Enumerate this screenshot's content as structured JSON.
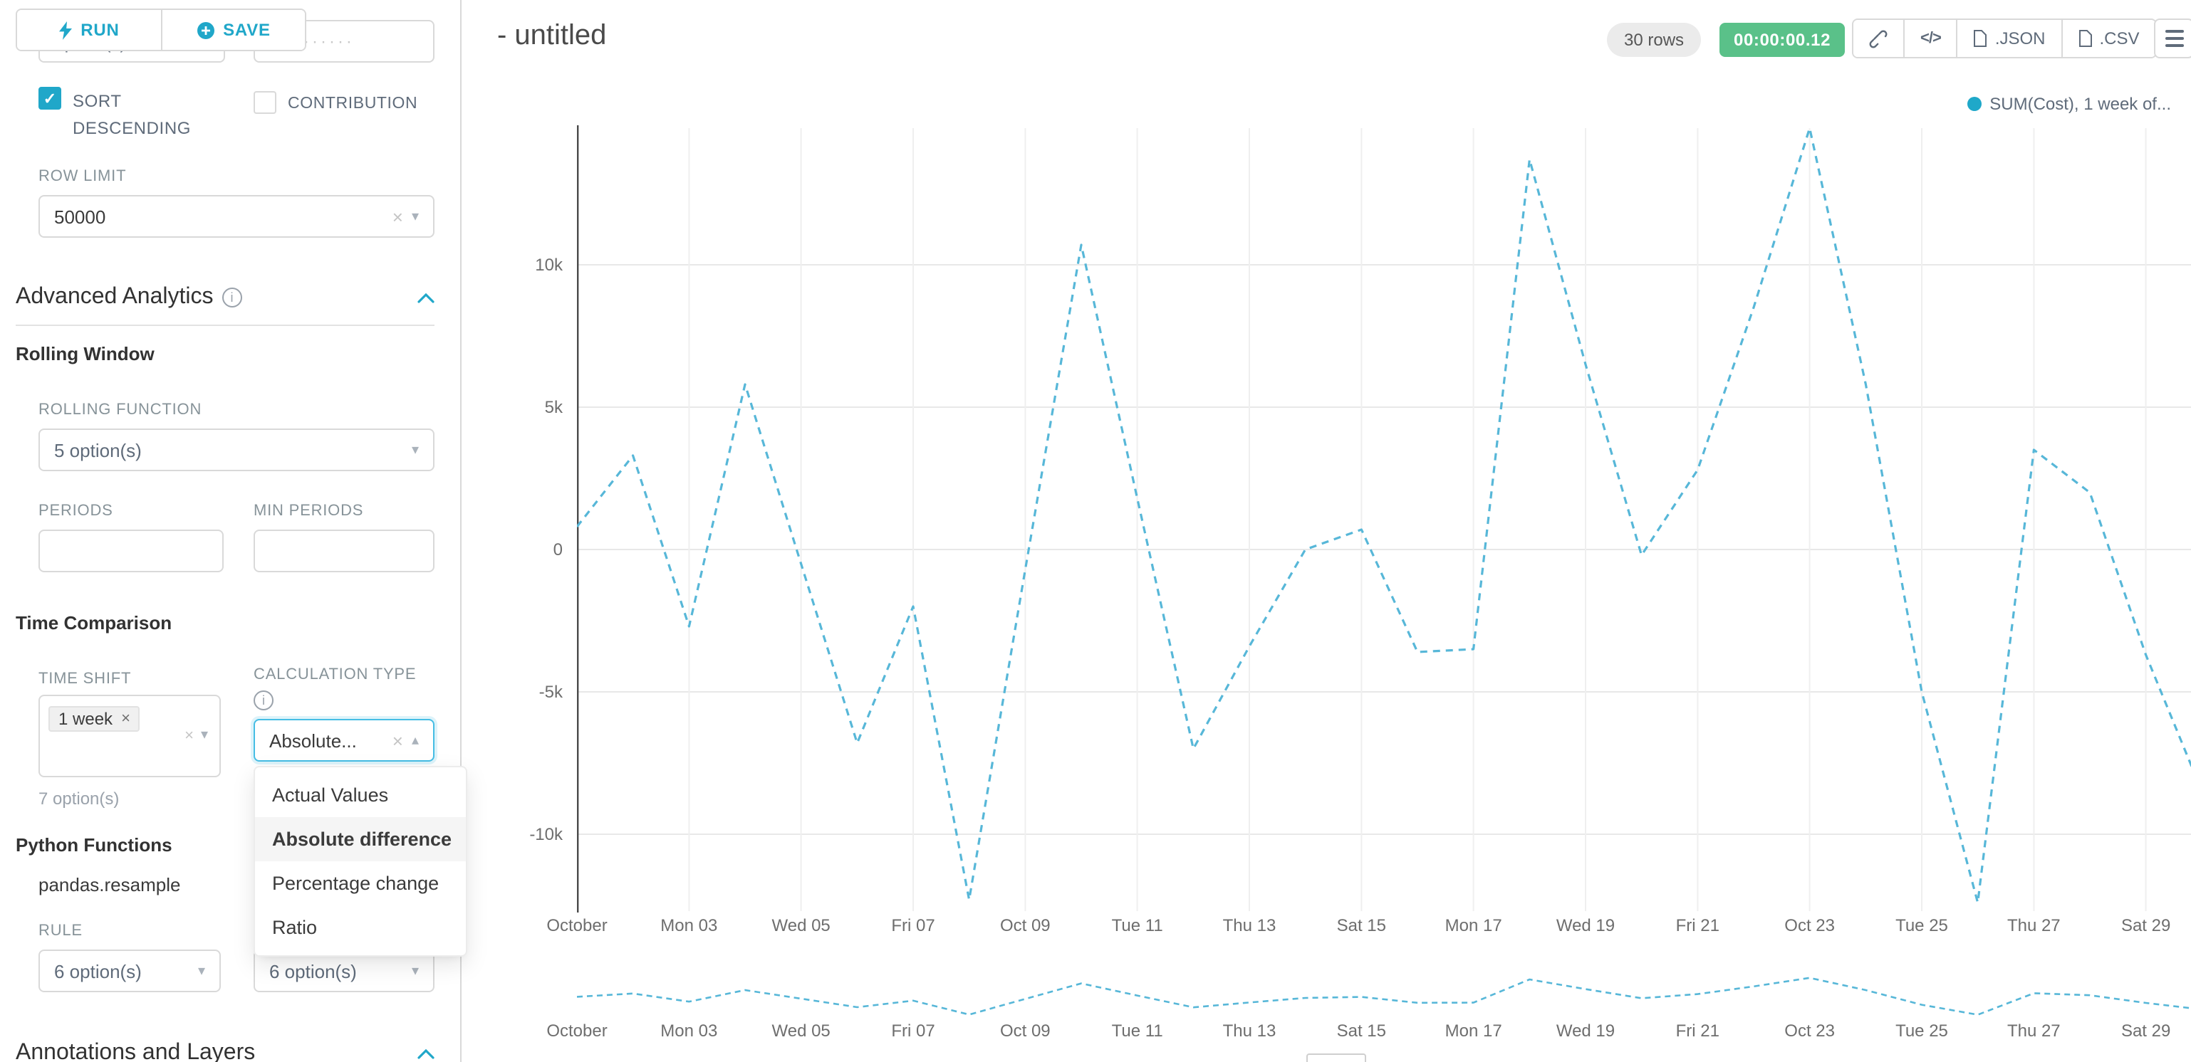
{
  "toolbar": {
    "run_label": "RUN",
    "save_label": "SAVE"
  },
  "sidebar": {
    "cropped_selects": {
      "left": "option(s)",
      "right": "··········"
    },
    "sort_descending_label": "SORT DESCENDING",
    "contribution_label": "CONTRIBUTION",
    "row_limit_label": "ROW LIMIT",
    "row_limit_value": "50000",
    "advanced_analytics_title": "Advanced Analytics",
    "rolling_window_title": "Rolling Window",
    "rolling_function_label": "ROLLING FUNCTION",
    "rolling_function_value": "5 option(s)",
    "periods_label": "PERIODS",
    "min_periods_label": "MIN PERIODS",
    "time_comparison_title": "Time Comparison",
    "time_shift_label": "TIME SHIFT",
    "time_shift_tag": "1 week",
    "time_shift_hint": "7 option(s)",
    "calculation_type_label": "CALCULATION TYPE",
    "calculation_type_value": "Absolute...",
    "dropdown_items": [
      "Actual Values",
      "Absolute difference",
      "Percentage change",
      "Ratio"
    ],
    "dropdown_selected": "Absolute difference",
    "python_functions_title": "Python Functions",
    "pandas_resample": "pandas.resample",
    "rule_label": "RULE",
    "rule_value_left": "6 option(s)",
    "rule_value_right": "6 option(s)",
    "annotations_title": "Annotations and Layers"
  },
  "header": {
    "title": "- untitled",
    "rows_badge": "30 rows",
    "timer_badge": "00:00:00.12",
    "code_icon": "</>",
    "json_label": ".JSON",
    "csv_label": ".CSV"
  },
  "chart_data": {
    "type": "line",
    "legend_label": "SUM(Cost), 1 week of...",
    "series_style": "dashed",
    "line_color": "#57b7d8",
    "x_tick_labels": [
      "October",
      "Mon 03",
      "Wed 05",
      "Fri 07",
      "Oct 09",
      "Tue 11",
      "Thu 13",
      "Sat 15",
      "Mon 17",
      "Wed 19",
      "Fri 21",
      "Oct 23",
      "Tue 25",
      "Thu 27",
      "Sat 29"
    ],
    "y_tick_labels": [
      "10k",
      "5k",
      "0",
      "-5k",
      "-10k"
    ],
    "y_tick_values": [
      10000,
      5000,
      0,
      -5000,
      -10000
    ],
    "ylim": [
      -14800,
      15200
    ],
    "x_day_index": [
      0,
      1,
      2,
      3,
      4,
      5,
      6,
      7,
      8,
      9,
      10,
      11,
      12,
      13,
      14,
      15,
      16,
      17,
      18,
      19,
      20,
      21,
      22,
      23,
      24,
      25,
      26,
      27,
      28,
      29
    ],
    "values_k": [
      0.8,
      3.3,
      -2.7,
      5.8,
      -0.5,
      -6.8,
      -2.0,
      -12.3,
      -0.7,
      10.7,
      1.8,
      -7.0,
      -3.4,
      0.0,
      0.7,
      -3.6,
      -3.5,
      13.7,
      6.5,
      -0.2,
      2.8,
      8.5,
      14.8,
      5.8,
      -5.0,
      -12.4,
      3.5,
      2.0,
      -3.7,
      -8.5
    ],
    "grid": true,
    "legend_position": "top-right",
    "has_mini_preview": true
  }
}
